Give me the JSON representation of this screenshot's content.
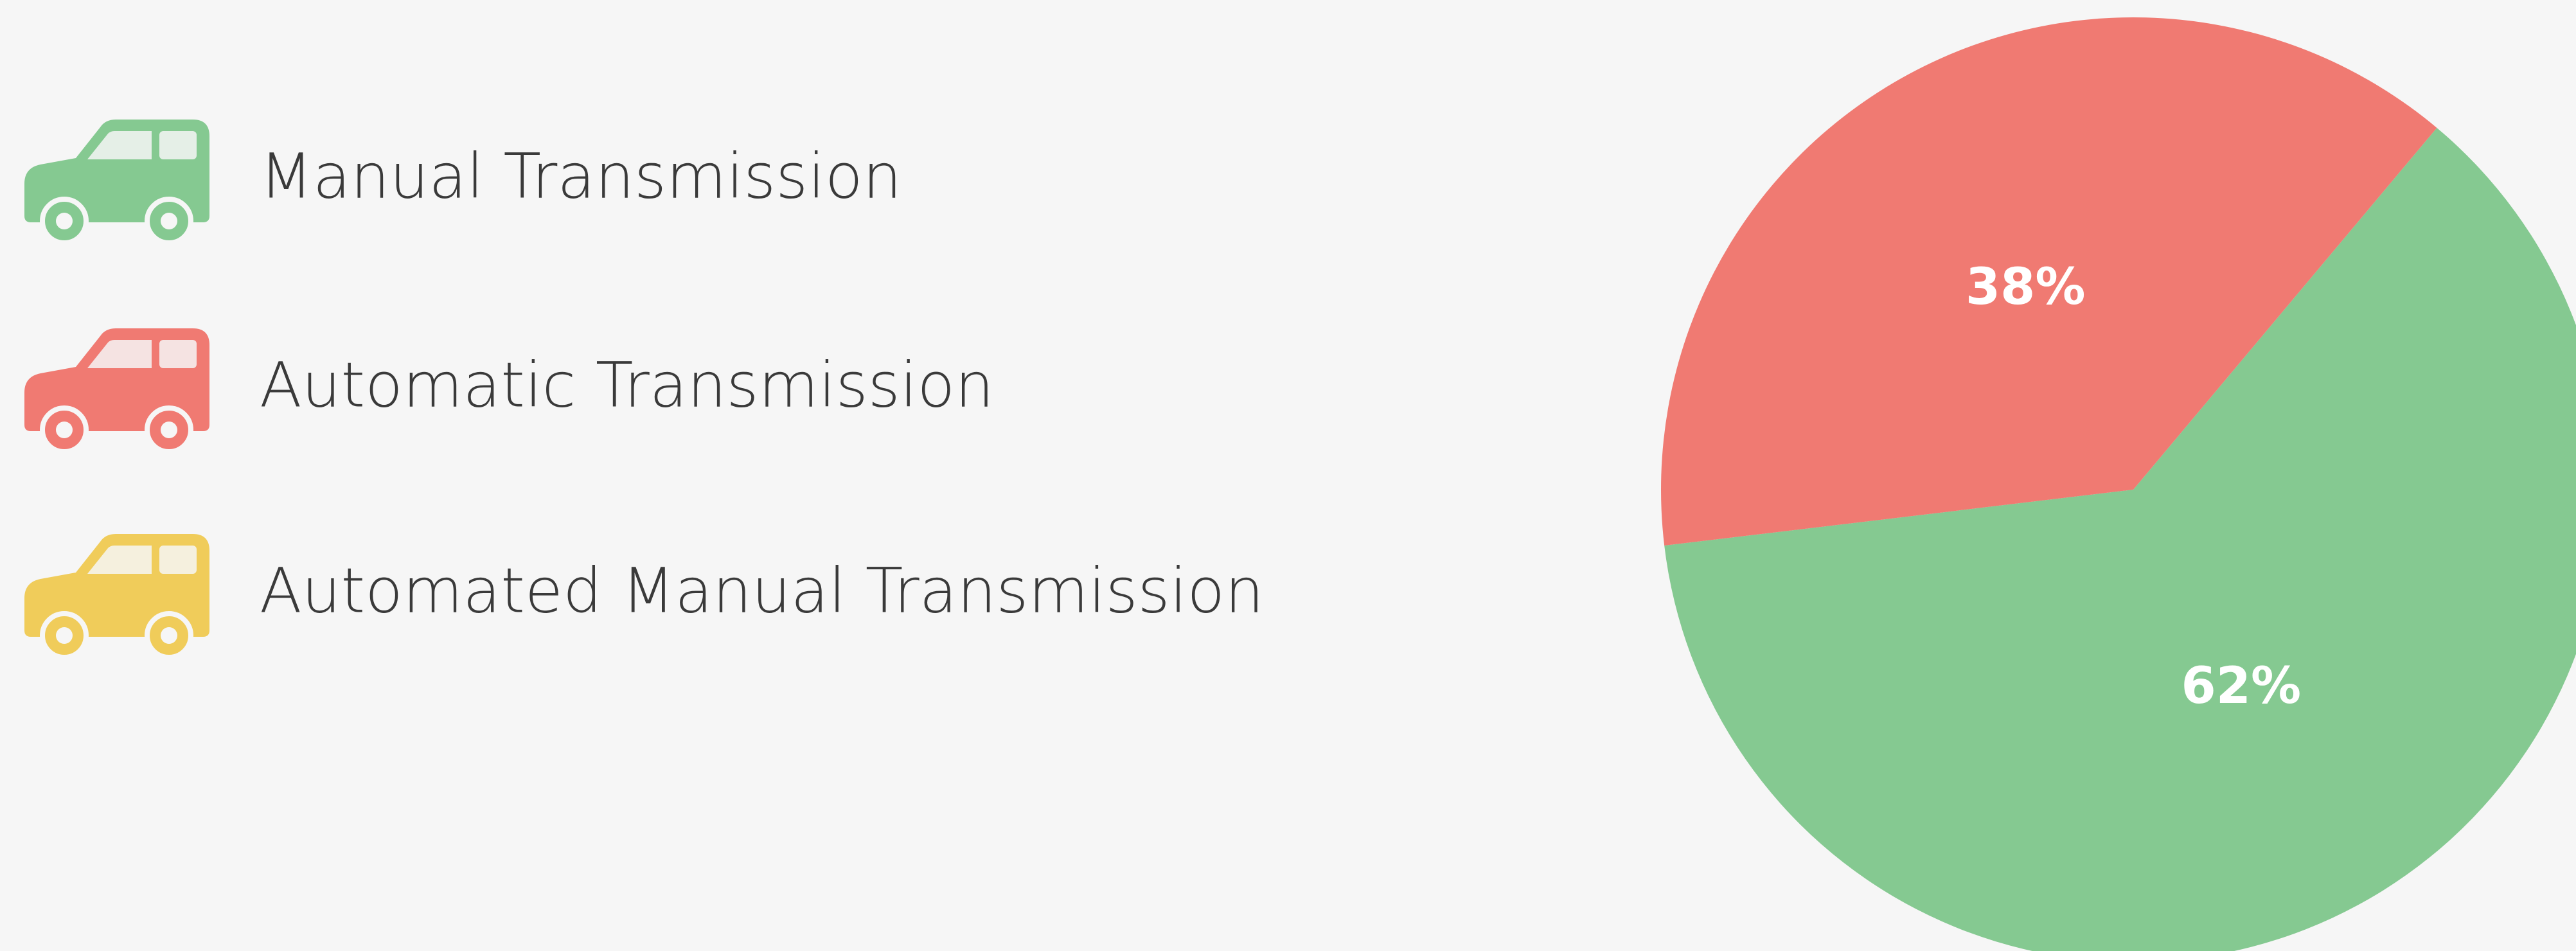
{
  "chart_data": {
    "type": "pie",
    "categories": [
      "Manual Transmission",
      "Automatic Transmission",
      "Automated Manual Transmission"
    ],
    "values": [
      62,
      38,
      0
    ],
    "value_labels": [
      "62%",
      "38%",
      null
    ],
    "colors": [
      "#85c991",
      "#f07a72",
      "#f0cc5a"
    ]
  }
}
